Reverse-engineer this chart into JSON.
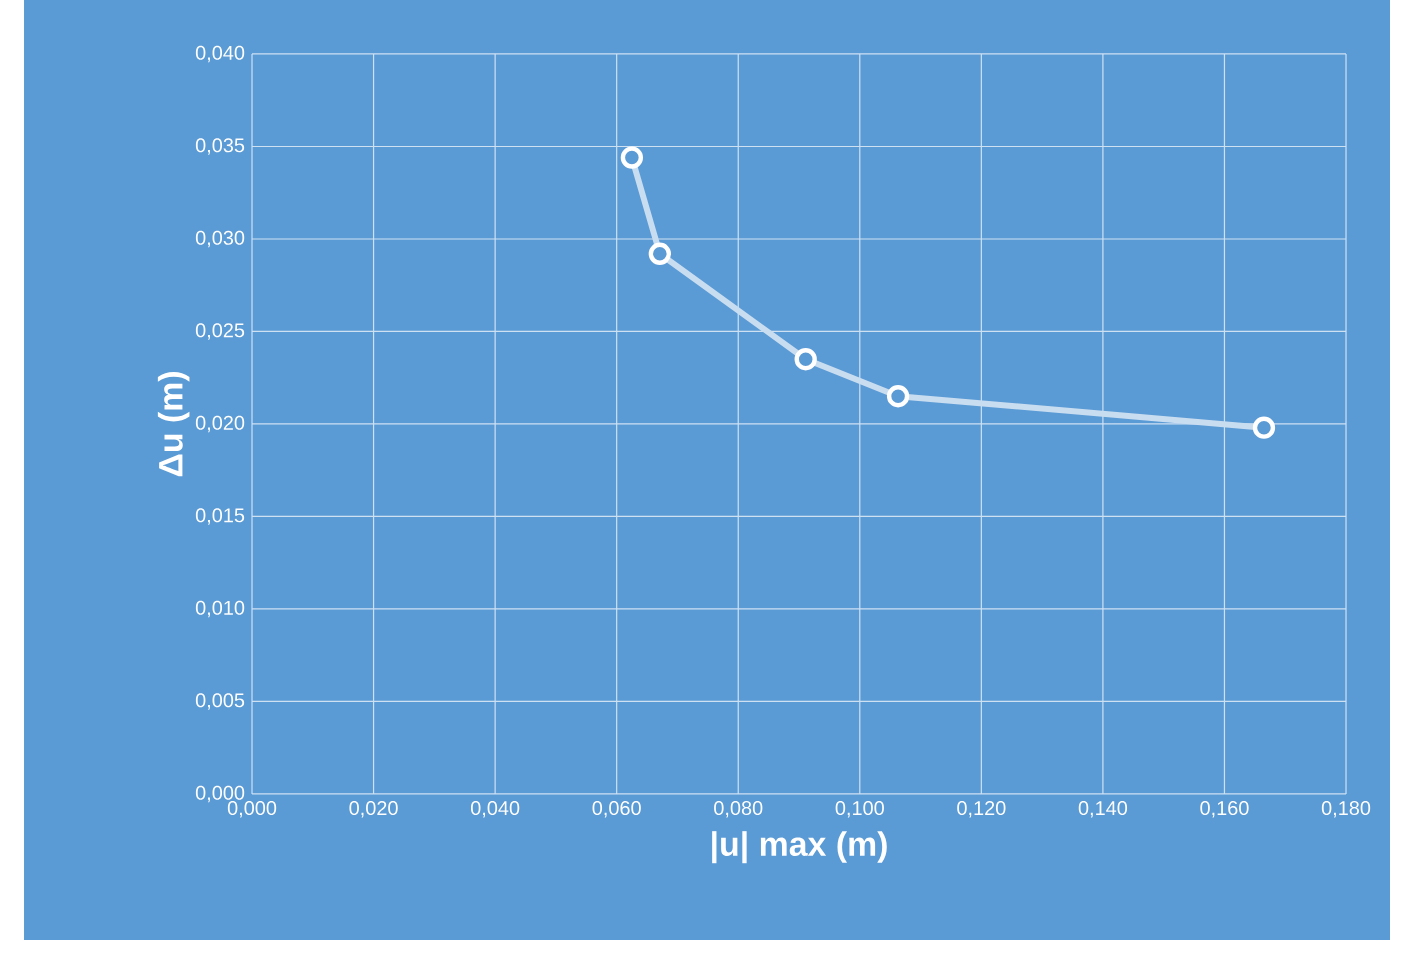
{
  "chart_data": {
    "type": "line",
    "xlabel": "|u| max (m)",
    "ylabel": "Δu (m)",
    "x": [
      0.0625,
      0.0671,
      0.0911,
      0.1063,
      0.1665
    ],
    "series": [
      {
        "color": "#c9ddf1",
        "values": [
          0.0344,
          0.0292,
          0.0235,
          0.0215,
          0.0198
        ]
      }
    ],
    "xlim": [
      0,
      0.18
    ],
    "ylim": [
      0,
      0.04
    ],
    "xticks": [
      {
        "value": 0,
        "label": "0,000"
      },
      {
        "value": 0.02,
        "label": "0,020"
      },
      {
        "value": 0.04,
        "label": "0,040"
      },
      {
        "value": 0.06,
        "label": "0,060"
      },
      {
        "value": 0.08,
        "label": "0,080"
      },
      {
        "value": 0.1,
        "label": "0,100"
      },
      {
        "value": 0.12,
        "label": "0,120"
      },
      {
        "value": 0.14,
        "label": "0,140"
      },
      {
        "value": 0.16,
        "label": "0,160"
      },
      {
        "value": 0.18,
        "label": "0,180"
      }
    ],
    "yticks": [
      {
        "value": 0,
        "label": "0,000"
      },
      {
        "value": 0.005,
        "label": "0,005"
      },
      {
        "value": 0.01,
        "label": "0,010"
      },
      {
        "value": 0.015,
        "label": "0,015"
      },
      {
        "value": 0.02,
        "label": "0,020"
      },
      {
        "value": 0.025,
        "label": "0,025"
      },
      {
        "value": 0.03,
        "label": "0,030"
      },
      {
        "value": 0.035,
        "label": "0,035"
      },
      {
        "value": 0.04,
        "label": "0,040"
      }
    ],
    "grid": true,
    "marker": "circle",
    "line_style": "solid"
  }
}
